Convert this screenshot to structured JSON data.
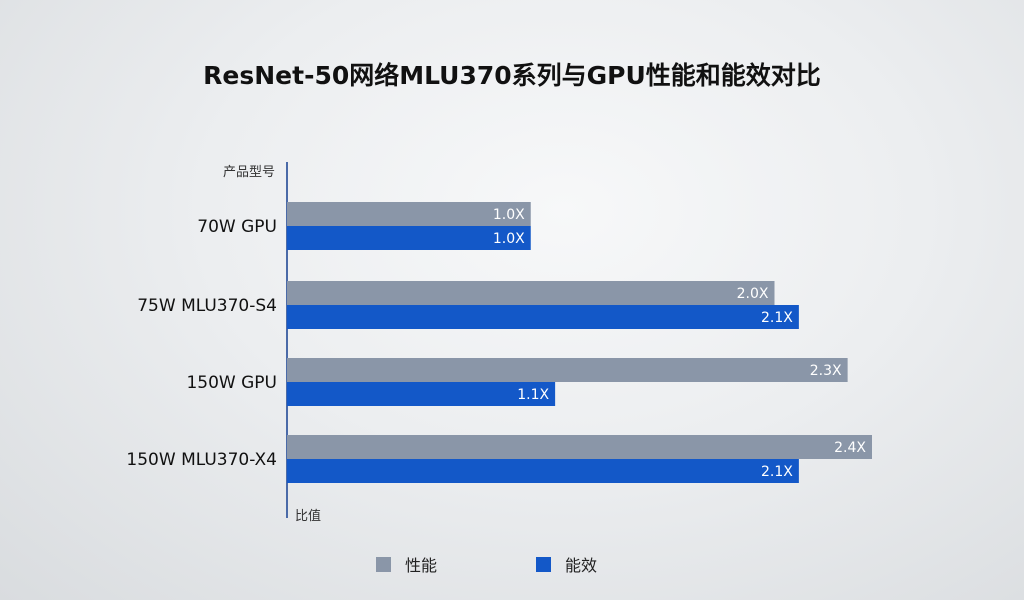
{
  "chart_data": {
    "type": "bar",
    "orientation": "horizontal",
    "title": "ResNet-50网络MLU370系列与GPU性能和能效对比",
    "ylabel": "产品型号",
    "xlabel": "比值",
    "categories": [
      "70W GPU",
      "75W MLU370-S4",
      "150W GPU",
      "150W MLU370-X4"
    ],
    "series": [
      {
        "name": "性能",
        "color": "#8a96a8",
        "values": [
          1.0,
          2.0,
          2.3,
          2.4
        ],
        "labels": [
          "1.0X",
          "2.0X",
          "2.3X",
          "2.4X"
        ]
      },
      {
        "name": "能效",
        "color": "#1358c8",
        "values": [
          1.0,
          2.1,
          1.1,
          2.1
        ],
        "labels": [
          "1.0X",
          "2.1X",
          "1.1X",
          "2.1X"
        ]
      }
    ],
    "xlim": [
      0,
      2.4
    ],
    "grid": false,
    "legend_position": "bottom"
  }
}
